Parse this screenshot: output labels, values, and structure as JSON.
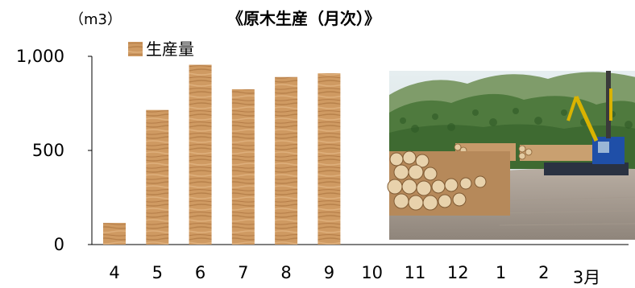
{
  "chart_data": {
    "type": "bar",
    "title": "《原木生産（月次）》",
    "unit_label": "（m3）",
    "legend": [
      "生産量"
    ],
    "categories": [
      "4",
      "5",
      "6",
      "7",
      "8",
      "9",
      "10",
      "11",
      "12",
      "1",
      "2",
      "3月"
    ],
    "series": [
      {
        "name": "生産量",
        "values": [
          115,
          715,
          955,
          825,
          890,
          910,
          null,
          null,
          null,
          null,
          null,
          null
        ]
      }
    ],
    "ylim": [
      0,
      1000
    ],
    "yticks": [
      0,
      500,
      1000
    ],
    "ytick_labels": [
      "0",
      "500",
      "1,000"
    ],
    "bar_color": "#c8915a",
    "grid": false,
    "legend_position": "top-left"
  },
  "photo": {
    "icon": "log-yard-photo"
  }
}
